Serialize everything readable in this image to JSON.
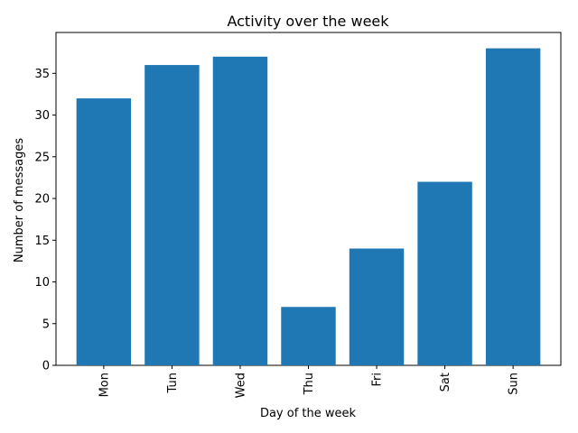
{
  "chart_data": {
    "type": "bar",
    "title": "Activity over the week",
    "xlabel": "Day of the week",
    "ylabel": "Number of messages",
    "categories": [
      "Mon",
      "Tun",
      "Wed",
      "Thu",
      "Fri",
      "Sat",
      "Sun"
    ],
    "values": [
      32,
      36,
      37,
      7,
      14,
      22,
      38
    ],
    "ylim": [
      0,
      39.9
    ],
    "yticks": [
      0,
      5,
      10,
      15,
      20,
      25,
      30,
      35
    ],
    "xtick_rotation": "vertical",
    "grid": false,
    "bar_color": "#1f77b4"
  }
}
